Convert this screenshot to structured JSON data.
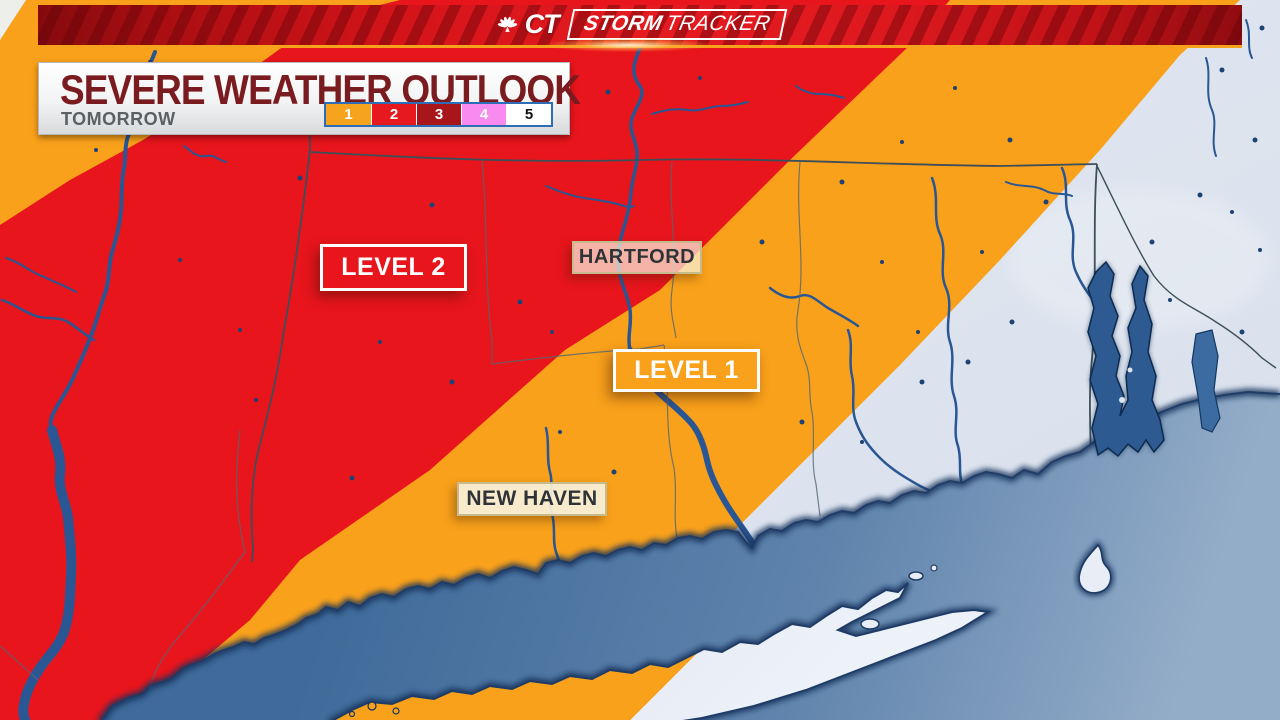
{
  "header": {
    "network": "CT",
    "brand_bold": "STORM",
    "brand_light": "TRACKER"
  },
  "outlook": {
    "title": "SEVERE WEATHER OUTLOOK",
    "subtitle": "TOMORROW"
  },
  "legend": {
    "items": [
      {
        "label": "1",
        "color": "#F6A41D",
        "text_color": "#FFFFFF"
      },
      {
        "label": "2",
        "color": "#E8191E",
        "text_color": "#FFFFFF"
      },
      {
        "label": "3",
        "color": "#A8151B",
        "text_color": "#FFFFFF"
      },
      {
        "label": "4",
        "color": "#F88AF0",
        "text_color": "#FFFFFF"
      },
      {
        "label": "5",
        "color": "#FFFFFF",
        "text_color": "#111111"
      }
    ]
  },
  "map": {
    "labels": {
      "level2": "LEVEL 2",
      "level1": "LEVEL 1",
      "hartford": "HARTFORD",
      "new_haven": "NEW HAVEN"
    },
    "colors": {
      "level1_fill": "#F9A11B",
      "level2_fill": "#E8151C",
      "no_outlook_land": "#DCE3EE",
      "water_dark": "#446E9C",
      "water_light": "#8FA9C5",
      "river": "#2A5794",
      "coast_outline": "#1B3A66"
    }
  }
}
